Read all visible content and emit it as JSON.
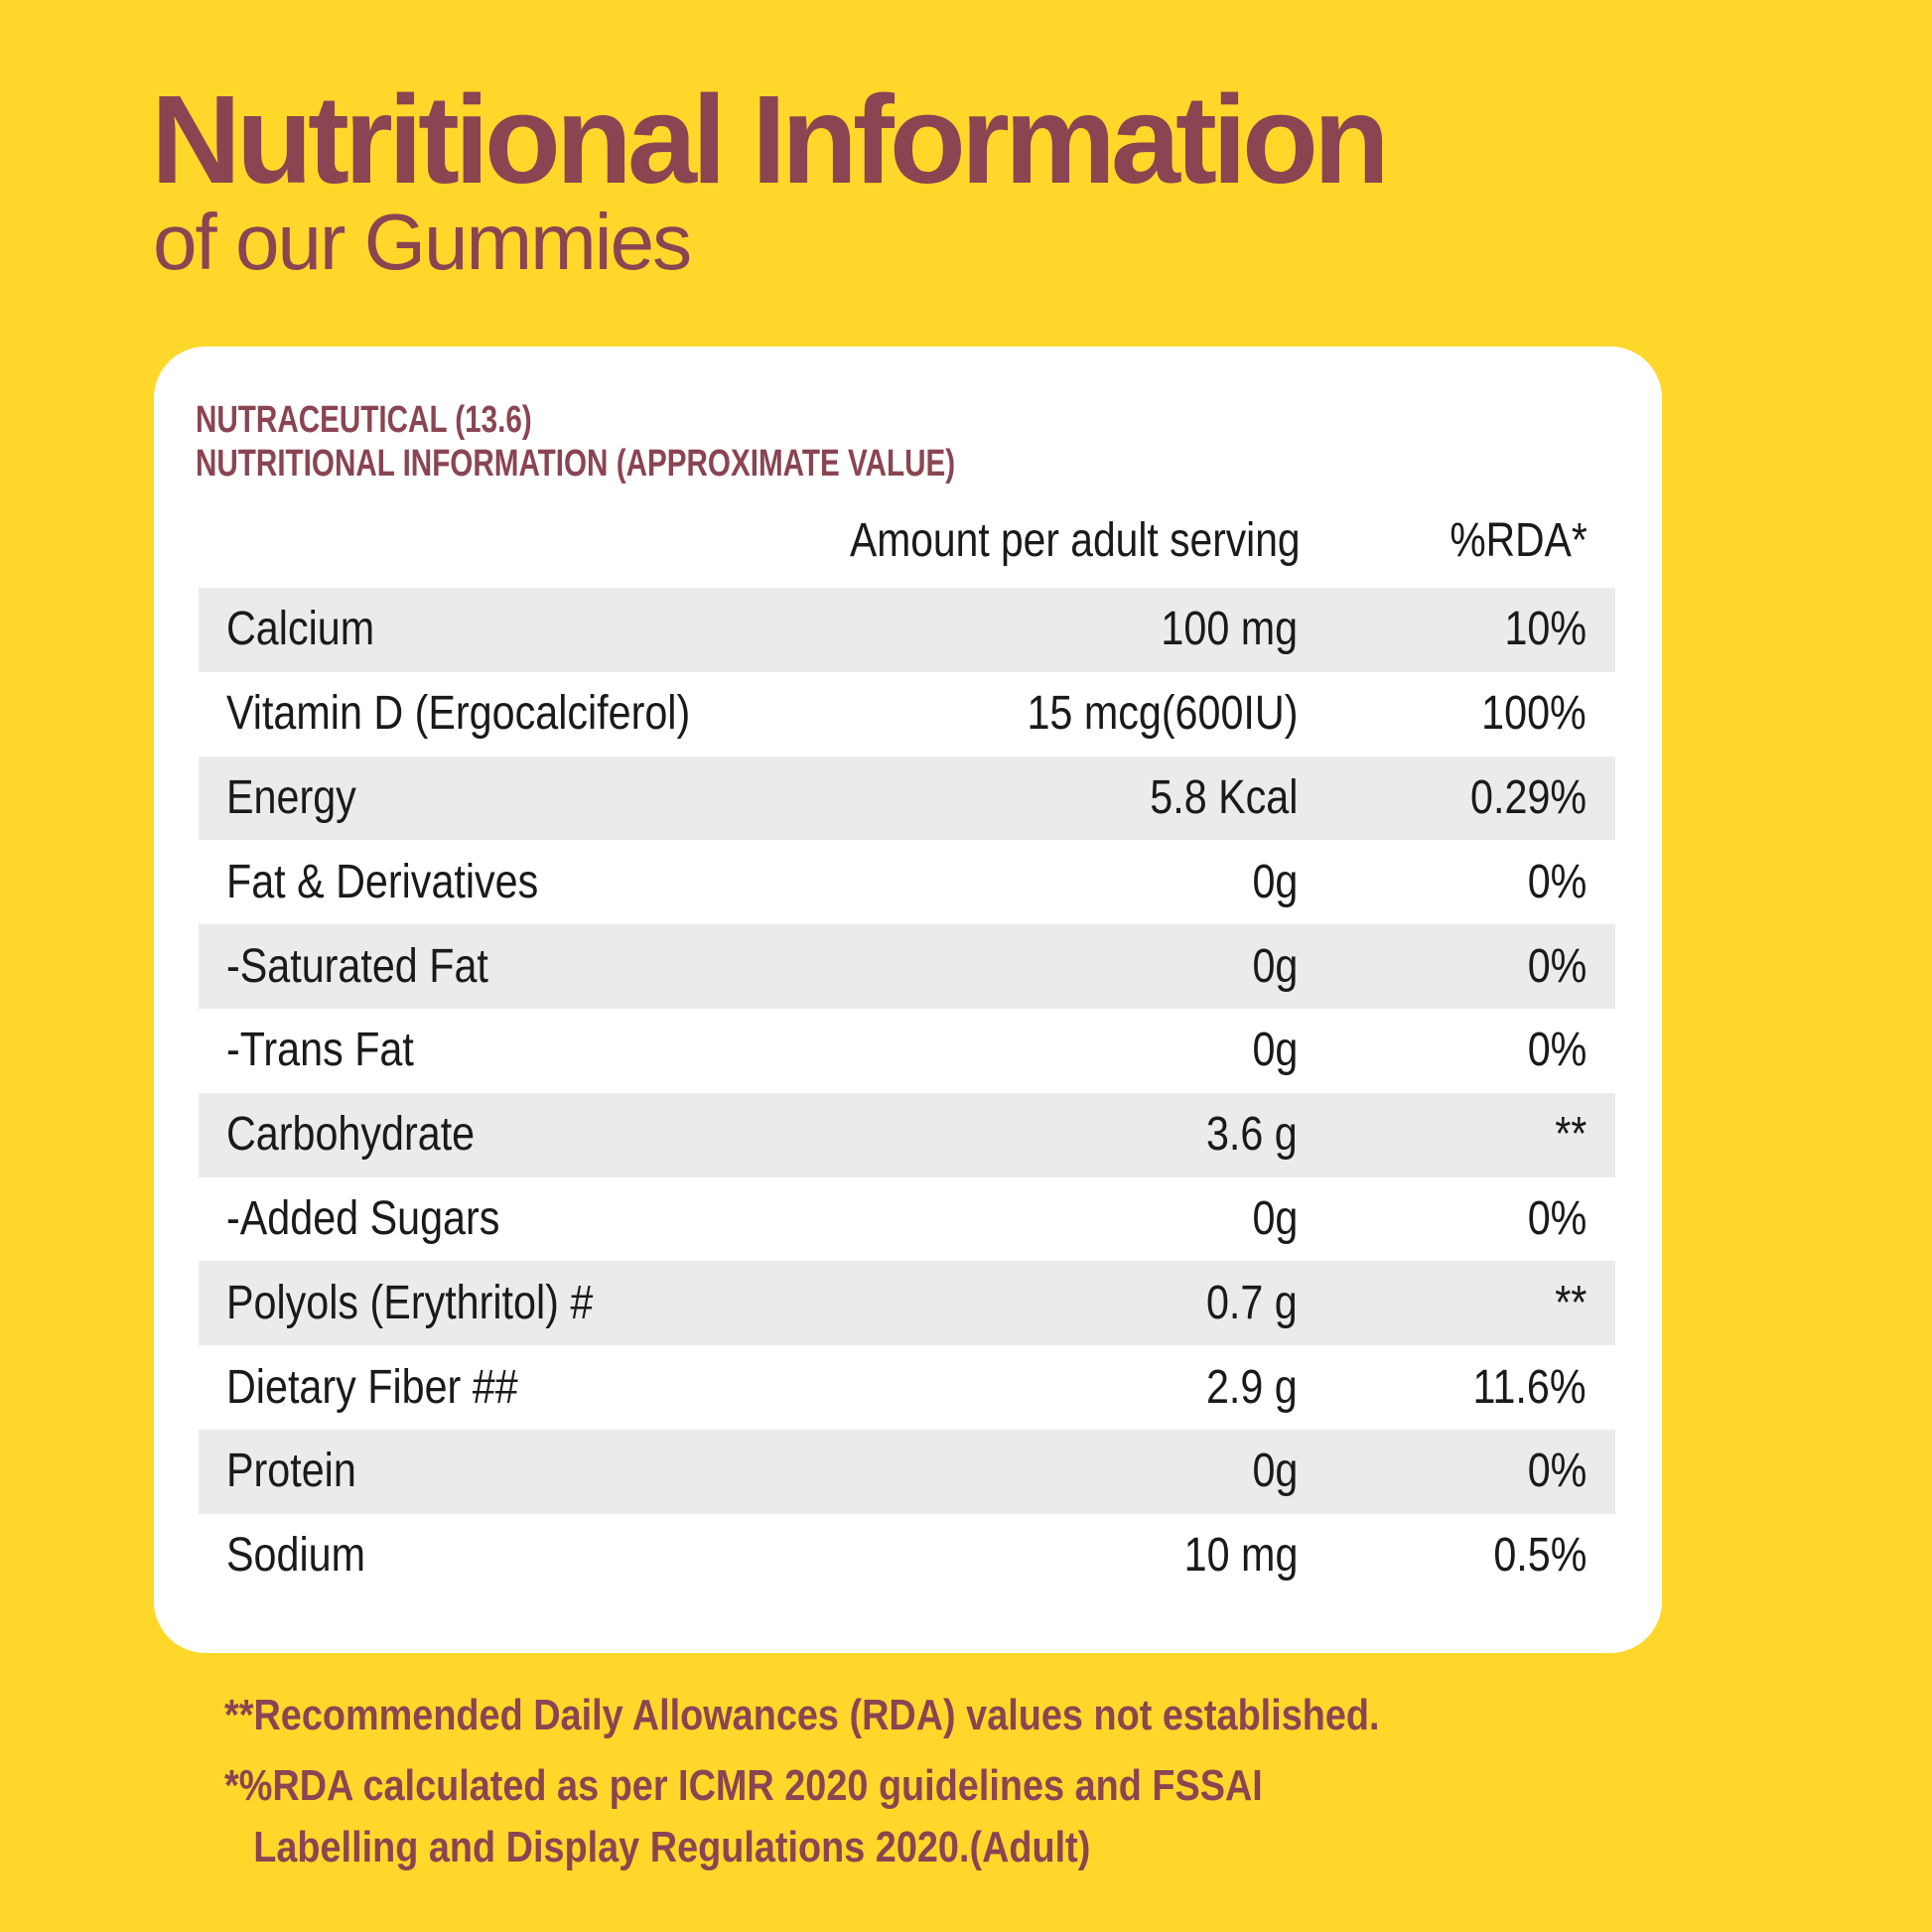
{
  "heading": {
    "title": "Nutritional Information",
    "subtitle": "of our Gummies"
  },
  "card": {
    "line1": "NUTRACEUTICAL (13.6)",
    "line2": "NUTRITIONAL INFORMATION (APPROXIMATE VALUE)",
    "col_amount": "Amount per adult serving",
    "col_rda": "%RDA*",
    "rows": [
      {
        "name": "Calcium",
        "amount": "100 mg",
        "rda": "10%"
      },
      {
        "name": "Vitamin D (Ergocalciferol)",
        "amount": "15 mcg(600IU)",
        "rda": "100%"
      },
      {
        "name": "Energy",
        "amount": "5.8 Kcal",
        "rda": "0.29%"
      },
      {
        "name": "Fat & Derivatives",
        "amount": "0g",
        "rda": "0%"
      },
      {
        "name": "-Saturated Fat",
        "amount": "0g",
        "rda": "0%"
      },
      {
        "name": "-Trans Fat",
        "amount": "0g",
        "rda": "0%"
      },
      {
        "name": "Carbohydrate",
        "amount": "3.6 g",
        "rda": "**"
      },
      {
        "name": "-Added Sugars",
        "amount": "0g",
        "rda": "0%"
      },
      {
        "name": "Polyols (Erythritol) #",
        "amount": "0.7 g",
        "rda": "**"
      },
      {
        "name": "Dietary Fiber ##",
        "amount": "2.9 g",
        "rda": "11.6%"
      },
      {
        "name": "Protein",
        "amount": "0g",
        "rda": "0%"
      },
      {
        "name": "Sodium",
        "amount": "10 mg",
        "rda": "0.5%"
      }
    ]
  },
  "footnotes": {
    "note1": "**Recommended Daily Allowances (RDA) values not established.",
    "note2_line1": "*%RDA calculated as per ICMR 2020 guidelines and FSSAI",
    "note2_line2": "Labelling and Display Regulations 2020.(Adult)"
  },
  "colors": {
    "background": "#FDD82B",
    "accent": "#8A4452",
    "row_shade": "#EBEBEB"
  }
}
